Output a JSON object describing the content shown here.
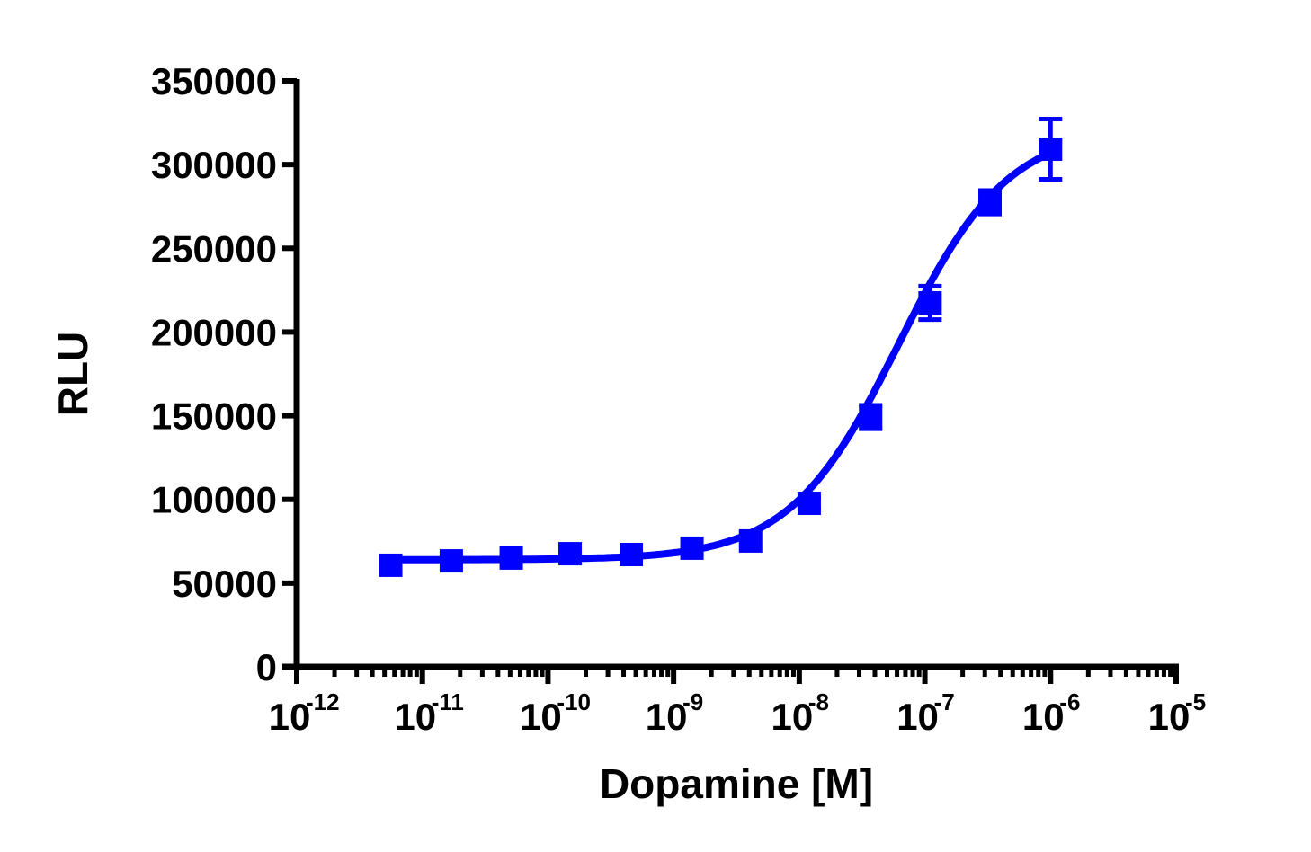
{
  "chart_data": {
    "type": "scatter",
    "title": "",
    "xlabel": "Dopamine [M]",
    "ylabel": "RLU",
    "xscale": "log",
    "xlim": [
      1e-12,
      1e-05
    ],
    "ylim": [
      0,
      350000
    ],
    "x_tick_labels": [
      "10-12",
      "10-11",
      "10-10",
      "10-9",
      "10-8",
      "10-7",
      "10-6",
      "10-5"
    ],
    "y_tick_labels": [
      "0",
      "50000",
      "100000",
      "150000",
      "200000",
      "250000",
      "300000",
      "350000"
    ],
    "grid": false,
    "legend": null,
    "series": [
      {
        "name": "Dopamine",
        "color": "#0000ff",
        "marker": "square",
        "fit": "sigmoidal dose-response",
        "x": [
          5.6e-12,
          1.7e-11,
          5.1e-11,
          1.5e-10,
          4.6e-10,
          1.4e-09,
          4.1e-09,
          1.2e-08,
          3.7e-08,
          1.1e-07,
          3.3e-07,
          1e-06
        ],
        "values": [
          60700,
          63300,
          65000,
          67600,
          67100,
          70900,
          75200,
          97700,
          149200,
          217400,
          277500,
          309200
        ],
        "error": [
          0,
          0,
          0,
          0,
          0,
          0,
          0,
          3000,
          7000,
          10000,
          7000,
          18000
        ]
      }
    ]
  }
}
